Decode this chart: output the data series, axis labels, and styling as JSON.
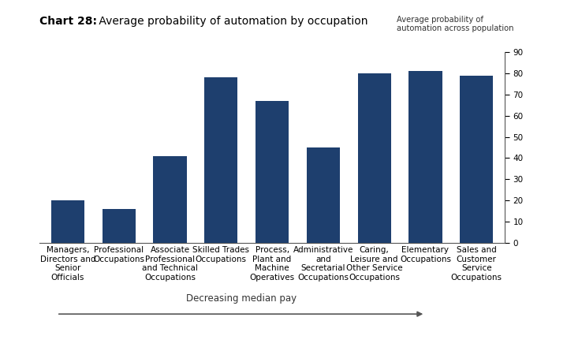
{
  "title_bold": "Chart 28:",
  "title_regular": " Average probability of automation by occupation",
  "right_label_line1": "Average probability of",
  "right_label_line2": "automation across population",
  "categories": [
    "Managers,\nDirectors and\nSenior\nOfficials",
    "Professional\nOccupations",
    "Associate\nProfessional\nand Technical\nOccupations",
    "Skilled Trades\nOccupations",
    "Process,\nPlant and\nMachine\nOperatives",
    "Administrative\nand\nSecretarial\nOccupations",
    "Caring,\nLeisure and\nOther Service\nOccupations",
    "Elementary\nOccupations",
    "Sales and\nCustomer\nService\nOccupations"
  ],
  "values": [
    20,
    16,
    41,
    78,
    67,
    45,
    80,
    81,
    79
  ],
  "bar_color": "#1e3f6e",
  "ylim": [
    0,
    90
  ],
  "yticks": [
    0,
    10,
    20,
    30,
    40,
    50,
    60,
    70,
    80,
    90
  ],
  "arrow_label": "Decreasing median pay",
  "background_color": "#ffffff",
  "title_fontsize": 10,
  "tick_fontsize": 7.5,
  "label_fontsize": 7.5
}
